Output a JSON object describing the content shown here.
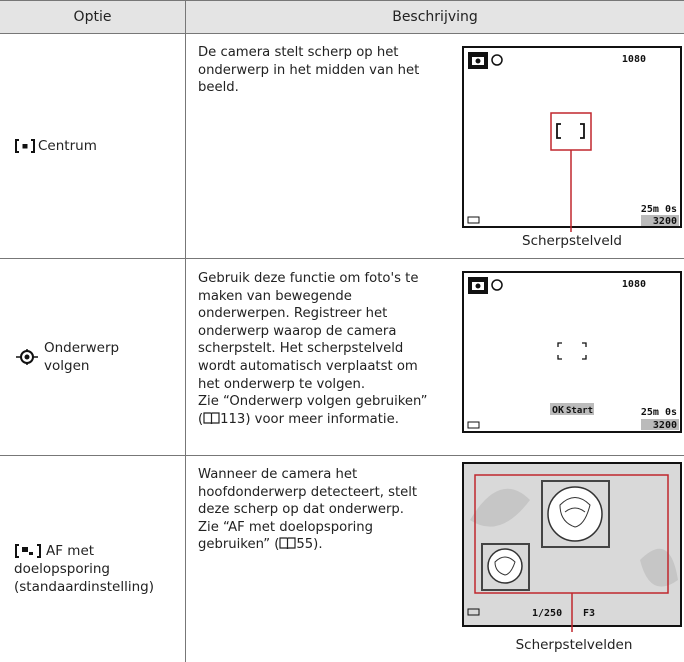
{
  "table": {
    "header": [
      "Optie",
      "Beschrijving"
    ],
    "rows": [
      {
        "option": [
          "Centrum"
        ],
        "description": [
          "De camera stelt scherp op het",
          "onderwerp in het midden van het",
          "beeld."
        ],
        "screen": {
          "resolution": "1080",
          "time": "25m 0s",
          "count": "3200"
        },
        "callout": "Scherpstelveld"
      },
      {
        "option": [
          "Onderwerp",
          "volgen"
        ],
        "description": [
          "Gebruik deze functie om foto's te",
          "maken van bewegende",
          "onderwerpen. Registreer het",
          "onderwerp waarop de camera",
          "scherpstelt. Het scherpstelveld",
          "wordt automatisch verplaatst om",
          "het onderwerp te volgen.",
          "Zie “Onderwerp volgen gebruiken”",
          [
            "(",
            "113) voor meer informatie."
          ]
        ],
        "screen": {
          "resolution": "1080",
          "button": "OK",
          "action": "Start",
          "time": "25m 0s",
          "count": "3200"
        }
      },
      {
        "option": [
          "AF met",
          "doelopsporing",
          "(standaardinstelling)"
        ],
        "description": [
          "Wanneer de camera het",
          "hoofdonderwerp detecteert, stelt",
          "deze scherp op dat onderwerp.",
          "Zie “AF met doelopsporing",
          [
            "gebruiken” (",
            "55)."
          ]
        ],
        "screen": {
          "shutter": "1/250",
          "aperture": "F3"
        },
        "callout": "Scherpstelvelden"
      }
    ]
  }
}
